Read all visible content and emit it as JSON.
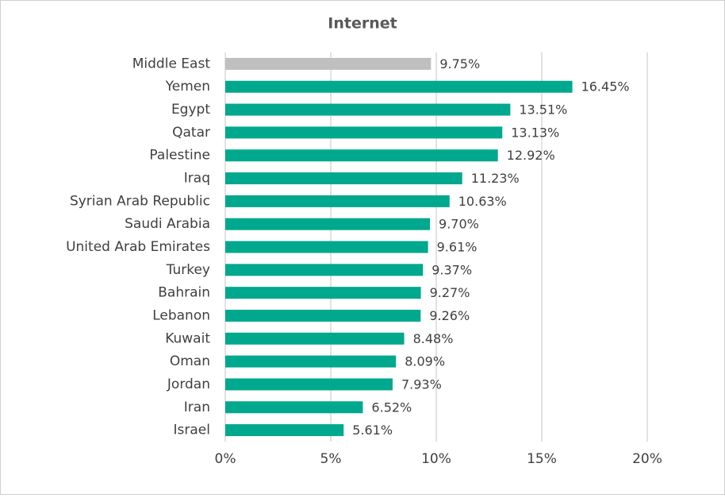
{
  "chart_data": {
    "type": "hbar",
    "title": "Internet",
    "categories": [
      "Middle East",
      "Yemen",
      "Egypt",
      "Qatar",
      "Palestine",
      "Iraq",
      "Syrian Arab Republic",
      "Saudi Arabia",
      "United Arab Emirates",
      "Turkey",
      "Bahrain",
      "Lebanon",
      "Kuwait",
      "Oman",
      "Jordan",
      "Iran",
      "Israel"
    ],
    "values": [
      9.75,
      16.45,
      13.51,
      13.13,
      12.92,
      11.23,
      10.63,
      9.7,
      9.61,
      9.37,
      9.27,
      9.26,
      8.48,
      8.09,
      7.93,
      6.52,
      5.61
    ],
    "value_labels": [
      "9.75%",
      "16.45%",
      "13.51%",
      "13.13%",
      "12.92%",
      "11.23%",
      "10.63%",
      "9.70%",
      "9.61%",
      "9.37%",
      "9.27%",
      "9.26%",
      "8.48%",
      "8.09%",
      "7.93%",
      "6.52%",
      "5.61%"
    ],
    "colors": [
      "#bfbfbf",
      "#00a88e",
      "#00a88e",
      "#00a88e",
      "#00a88e",
      "#00a88e",
      "#00a88e",
      "#00a88e",
      "#00a88e",
      "#00a88e",
      "#00a88e",
      "#00a88e",
      "#00a88e",
      "#00a88e",
      "#00a88e",
      "#00a88e",
      "#00a88e"
    ],
    "xlim": [
      0,
      20
    ],
    "xticks": [
      {
        "value": 0,
        "label": "0%"
      },
      {
        "value": 5,
        "label": "5%"
      },
      {
        "value": 10,
        "label": "10%"
      },
      {
        "value": 15,
        "label": "15%"
      },
      {
        "value": 20,
        "label": "20%"
      }
    ],
    "grid": true
  }
}
